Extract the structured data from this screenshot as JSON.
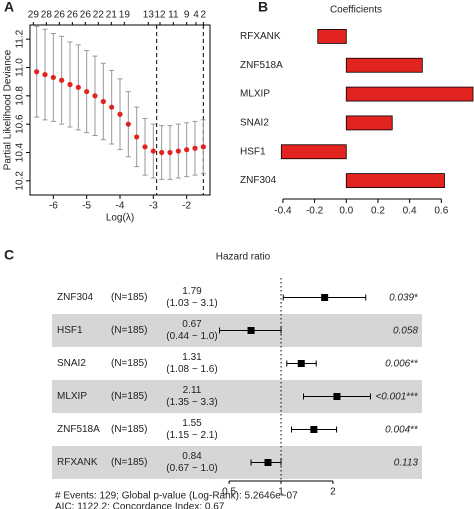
{
  "chart_data": [
    {
      "type": "line",
      "panel": "A",
      "x_label": "Log(λ)",
      "y_label": "Partial Likelihood Deviance",
      "xlim": [
        -6.7,
        -1.3
      ],
      "ylim": [
        10.1,
        11.3
      ],
      "xticks": [
        -6,
        -5,
        -4,
        -3,
        -2
      ],
      "yticks": [
        10.2,
        10.4,
        10.6,
        10.8,
        {
          "value": 11.0,
          "label": "11.0"
        },
        11.2
      ],
      "top_ticks": [
        {
          "value": -6.6,
          "label": "29"
        },
        {
          "value": -6.21,
          "label": "28"
        },
        {
          "value": -5.82,
          "label": "26"
        },
        {
          "value": -5.43,
          "label": "26"
        },
        {
          "value": -5.04,
          "label": "26"
        },
        {
          "value": -4.65,
          "label": "22"
        },
        {
          "value": -4.26,
          "label": "21"
        },
        {
          "value": -3.87,
          "label": "19"
        },
        {
          "value": -3.15,
          "label": "13"
        },
        {
          "value": -2.8,
          "label": "12"
        },
        {
          "value": -2.4,
          "label": "11"
        },
        {
          "value": -2.0,
          "label": "9"
        },
        {
          "value": -1.72,
          "label": "4"
        },
        {
          "value": -1.5,
          "label": "2"
        }
      ],
      "vlines": [
        -2.9,
        -1.5
      ],
      "series": [
        {
          "color": "#e3231f",
          "x": [
            -6.5,
            -6.25,
            -6.0,
            -5.75,
            -5.5,
            -5.25,
            -5.0,
            -4.75,
            -4.5,
            -4.25,
            -4.0,
            -3.75,
            -3.5,
            -3.25,
            -3.0,
            -2.75,
            -2.5,
            -2.25,
            -2.0,
            -1.75,
            -1.5
          ],
          "values": [
            10.97,
            10.95,
            10.93,
            10.91,
            10.88,
            10.86,
            10.83,
            10.8,
            10.76,
            10.72,
            10.67,
            10.6,
            10.51,
            10.44,
            10.41,
            10.4,
            10.4,
            10.41,
            10.42,
            10.43,
            10.44
          ],
          "errors": [
            0.32,
            0.32,
            0.31,
            0.31,
            0.3,
            0.3,
            0.29,
            0.28,
            0.27,
            0.26,
            0.25,
            0.23,
            0.21,
            0.2,
            0.19,
            0.19,
            0.19,
            0.19,
            0.19,
            0.19,
            0.19
          ]
        }
      ]
    },
    {
      "type": "hbar",
      "panel": "B",
      "title": "Coefficients",
      "categories": [
        "RFXANK",
        "ZNF518A",
        "MLXIP",
        "SNAI2",
        "HSF1",
        "ZNF304"
      ],
      "values": [
        -0.18,
        0.48,
        0.8,
        0.29,
        -0.41,
        0.62
      ],
      "color": "#e3231f",
      "xlim": [
        -0.45,
        0.8
      ],
      "xticks": [
        -0.4,
        -0.2,
        {
          "value": 0,
          "label": "0.0"
        },
        0.2,
        0.4,
        0.6
      ]
    },
    {
      "type": "forest",
      "panel": "C",
      "title": "Hazard ratio",
      "xlim": [
        0.33,
        4.4
      ],
      "xticks": [
        0.5,
        1,
        2
      ],
      "log_x": true,
      "refline": 1,
      "rows": [
        {
          "name": "ZNF304",
          "n": "(N=185)",
          "hr": 1.79,
          "ci_low": 1.03,
          "ci_high": 3.1,
          "ci_label": "(1.03 − 3.1)",
          "p_label": "0.039",
          "stars": "*"
        },
        {
          "name": "HSF1",
          "n": "(N=185)",
          "hr": 0.67,
          "ci_low": 0.44,
          "ci_high": 1.0,
          "ci_label": "(0.44 − 1.0)",
          "p_label": "0.058"
        },
        {
          "name": "SNAI2",
          "n": "(N=185)",
          "hr": 1.31,
          "ci_low": 1.08,
          "ci_high": 1.6,
          "ci_label": "(1.08 − 1.6)",
          "p_label": "0.006",
          "stars": "**"
        },
        {
          "name": "MLXIP",
          "n": "(N=185)",
          "hr": 2.11,
          "ci_low": 1.35,
          "ci_high": 3.3,
          "ci_label": "(1.35 − 3.3)",
          "p_label": "<0.001",
          "stars": "***"
        },
        {
          "name": "ZNF518A",
          "n": "(N=185)",
          "hr": 1.55,
          "ci_low": 1.15,
          "ci_high": 2.1,
          "ci_label": "(1.15 − 2.1)",
          "p_label": "0.004",
          "stars": "**"
        },
        {
          "name": "RFXANK",
          "n": "(N=185)",
          "hr": 0.84,
          "ci_low": 0.67,
          "ci_high": 1.0,
          "ci_label": "(0.67 − 1.0)",
          "p_label": "0.113"
        }
      ],
      "footer": [
        "# Events: 129; Global p-value (Log-Rank): 5.2646e−07",
        "AIC: 1122.2; Concordance Index: 0.67"
      ]
    }
  ]
}
